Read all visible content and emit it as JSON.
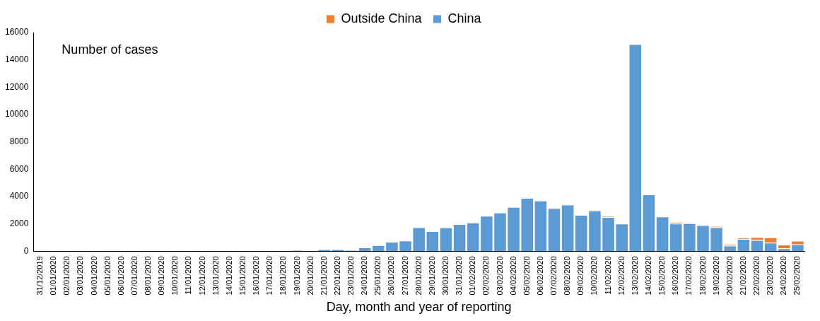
{
  "chart_data": {
    "type": "bar",
    "ylabel": "Number of cases",
    "xlabel": "Day, month and year of reporting",
    "categories": [
      "31/12/2019",
      "01/01/2020",
      "02/01/2020",
      "03/01/2020",
      "04/01/2020",
      "05/01/2020",
      "06/01/2020",
      "07/01/2020",
      "08/01/2020",
      "09/01/2020",
      "10/01/2020",
      "11/01/2020",
      "12/01/2020",
      "13/01/2020",
      "14/01/2020",
      "15/01/2020",
      "16/01/2020",
      "17/01/2020",
      "18/01/2020",
      "19/01/2020",
      "20/01/2020",
      "21/01/2020",
      "22/01/2020",
      "23/01/2020",
      "24/01/2020",
      "25/01/2020",
      "26/01/2020",
      "27/01/2020",
      "28/01/2020",
      "29/01/2020",
      "30/01/2020",
      "31/01/2020",
      "01/02/2020",
      "02/02/2020",
      "03/02/2020",
      "04/02/2020",
      "05/02/2020",
      "06/02/2020",
      "07/02/2020",
      "08/02/2020",
      "09/02/2020",
      "10/02/2020",
      "11/02/2020",
      "12/02/2020",
      "13/02/2020",
      "14/02/2020",
      "15/02/2020",
      "16/02/2020",
      "17/02/2020",
      "18/02/2020",
      "19/02/2020",
      "20/02/2020",
      "21/02/2020",
      "22/02/2020",
      "23/02/2020",
      "24/02/2020",
      "25/02/2020"
    ],
    "series": [
      {
        "name": "China",
        "color": "#5b9bd5",
        "values": [
          27,
          0,
          0,
          17,
          0,
          15,
          0,
          0,
          0,
          0,
          0,
          0,
          0,
          0,
          0,
          0,
          0,
          0,
          0,
          100,
          40,
          150,
          150,
          100,
          280,
          450,
          690,
          780,
          1750,
          1470,
          1740,
          1980,
          2100,
          2590,
          2820,
          3240,
          3900,
          3700,
          3150,
          3400,
          2650,
          2980,
          2500,
          2020,
          15150,
          4150,
          2540,
          2020,
          2050,
          1890,
          1750,
          400,
          900,
          820,
          630,
          210,
          500
        ]
      },
      {
        "name": "Outside China",
        "color": "#ed7d31",
        "values": [
          0,
          0,
          0,
          0,
          0,
          0,
          0,
          0,
          0,
          0,
          0,
          0,
          0,
          0,
          0,
          0,
          0,
          0,
          0,
          0,
          5,
          3,
          5,
          8,
          8,
          12,
          10,
          10,
          15,
          10,
          15,
          20,
          10,
          15,
          10,
          20,
          20,
          20,
          50,
          30,
          20,
          20,
          60,
          10,
          30,
          30,
          20,
          120,
          30,
          60,
          90,
          120,
          80,
          220,
          390,
          270,
          270
        ]
      }
    ],
    "stacked": true,
    "legend": "top",
    "grid": false,
    "ylim": [
      0,
      16000
    ],
    "yticks": [
      0,
      2000,
      4000,
      6000,
      8000,
      10000,
      12000,
      14000,
      16000
    ]
  }
}
